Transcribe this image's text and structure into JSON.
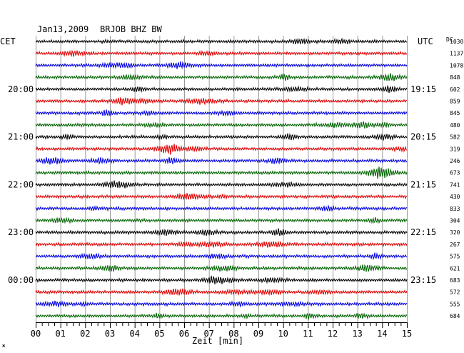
{
  "header": {
    "date": "Jan13,2009",
    "station": "BRJOB BHZ BW",
    "left_tz": "CET",
    "right_tz": "UTC",
    "scale_header": "DC"
  },
  "chart_data": {
    "type": "line",
    "title": "Jan13,2009   BRJOB BHZ BW",
    "xlabel": "Zeit [min]",
    "xlim": [
      0,
      15
    ],
    "x_ticks": [
      "00",
      "01",
      "02",
      "03",
      "04",
      "05",
      "06",
      "07",
      "08",
      "09",
      "10",
      "11",
      "12",
      "13",
      "14",
      "15"
    ],
    "rows_per_hour": 4,
    "row_interval_min": 15,
    "trace_colors": [
      "#000000",
      "#e00000",
      "#0000e0",
      "#006400"
    ],
    "left_time_labels": [
      {
        "row": 4,
        "label": "20:00"
      },
      {
        "row": 8,
        "label": "21:00"
      },
      {
        "row": 12,
        "label": "22:00"
      },
      {
        "row": 16,
        "label": "23:00"
      },
      {
        "row": 20,
        "label": "00:00"
      }
    ],
    "right_time_labels": [
      {
        "row": 4,
        "label": "19:15"
      },
      {
        "row": 8,
        "label": "20:15"
      },
      {
        "row": 12,
        "label": "21:15"
      },
      {
        "row": 16,
        "label": "22:15"
      },
      {
        "row": 20,
        "label": "23:15"
      }
    ],
    "dc_values": [
      "1030",
      "1137",
      "1078",
      "848",
      "602",
      "859",
      "845",
      "480",
      "582",
      "319",
      "246",
      "673",
      "741",
      "430",
      "833",
      "304",
      "320",
      "267",
      "575",
      "621",
      "683",
      "572",
      "555",
      "684"
    ]
  },
  "footer": {
    "corner_mark": "ж"
  }
}
